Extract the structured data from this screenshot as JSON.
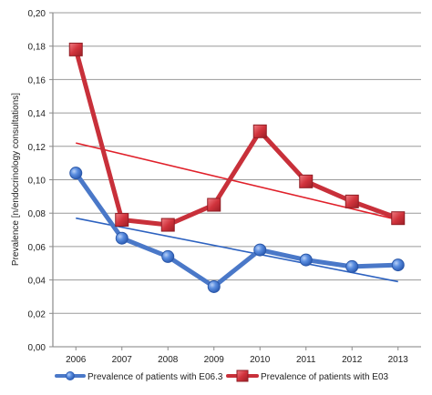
{
  "chart_data": {
    "type": "line",
    "title": "",
    "xlabel": "",
    "ylabel": "Prevalence [n/endocrinology consultations]",
    "categories": [
      "2006",
      "2007",
      "2008",
      "2009",
      "2010",
      "2011",
      "2012",
      "2013"
    ],
    "y_ticks": [
      "0,00",
      "0,02",
      "0,04",
      "0,06",
      "0,08",
      "0,10",
      "0,12",
      "0,14",
      "0,16",
      "0,18",
      "0,20"
    ],
    "ylim": [
      0,
      0.2
    ],
    "grid": "horizontal",
    "legend_position": "bottom",
    "series": [
      {
        "name": "Prevalence of patients with E06.3",
        "values": [
          0.104,
          0.065,
          0.054,
          0.036,
          0.058,
          0.052,
          0.048,
          0.049
        ],
        "color": "#4a78c8",
        "marker": "circle",
        "trendline": [
          0.077,
          0.039
        ]
      },
      {
        "name": "Prevalence of patients with E03",
        "values": [
          0.178,
          0.076,
          0.073,
          0.085,
          0.129,
          0.099,
          0.087,
          0.077
        ],
        "color": "#c8303a",
        "marker": "square",
        "trendline": [
          0.122,
          0.076
        ]
      }
    ],
    "trendline_colors": [
      "#2d62c0",
      "#e0202a"
    ]
  }
}
